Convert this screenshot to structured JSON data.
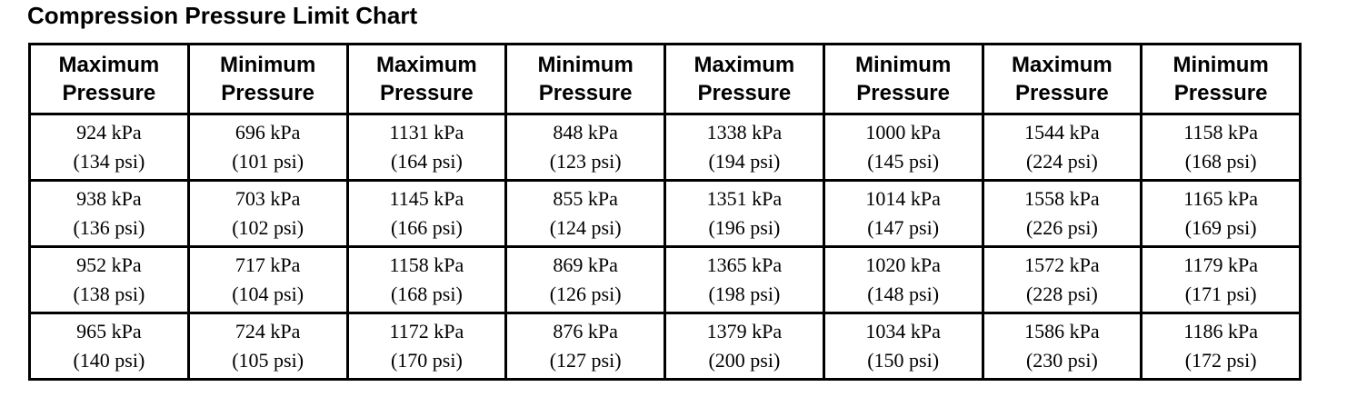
{
  "title": "Compression Pressure Limit Chart",
  "table": {
    "header": [
      {
        "line1": "Maximum",
        "line2": "Pressure"
      },
      {
        "line1": "Minimum",
        "line2": "Pressure"
      },
      {
        "line1": "Maximum",
        "line2": "Pressure"
      },
      {
        "line1": "Minimum",
        "line2": "Pressure"
      },
      {
        "line1": "Maximum",
        "line2": "Pressure"
      },
      {
        "line1": "Minimum",
        "line2": "Pressure"
      },
      {
        "line1": "Maximum",
        "line2": "Pressure"
      },
      {
        "line1": "Minimum",
        "line2": "Pressure"
      }
    ],
    "rows": [
      [
        {
          "kpa": "924 kPa",
          "psi": "(134 psi)"
        },
        {
          "kpa": "696 kPa",
          "psi": "(101 psi)"
        },
        {
          "kpa": "1131 kPa",
          "psi": "(164 psi)"
        },
        {
          "kpa": "848 kPa",
          "psi": "(123 psi)"
        },
        {
          "kpa": "1338 kPa",
          "psi": "(194 psi)"
        },
        {
          "kpa": "1000 kPa",
          "psi": "(145 psi)"
        },
        {
          "kpa": "1544 kPa",
          "psi": "(224 psi)"
        },
        {
          "kpa": "1158 kPa",
          "psi": "(168 psi)"
        }
      ],
      [
        {
          "kpa": "938 kPa",
          "psi": "(136 psi)"
        },
        {
          "kpa": "703 kPa",
          "psi": "(102 psi)"
        },
        {
          "kpa": "1145 kPa",
          "psi": "(166 psi)"
        },
        {
          "kpa": "855 kPa",
          "psi": "(124 psi)"
        },
        {
          "kpa": "1351 kPa",
          "psi": "(196 psi)"
        },
        {
          "kpa": "1014 kPa",
          "psi": "(147 psi)"
        },
        {
          "kpa": "1558 kPa",
          "psi": "(226 psi)"
        },
        {
          "kpa": "1165 kPa",
          "psi": "(169 psi)"
        }
      ],
      [
        {
          "kpa": "952 kPa",
          "psi": "(138 psi)"
        },
        {
          "kpa": "717 kPa",
          "psi": "(104 psi)"
        },
        {
          "kpa": "1158 kPa",
          "psi": "(168 psi)"
        },
        {
          "kpa": "869 kPa",
          "psi": "(126 psi)"
        },
        {
          "kpa": "1365 kPa",
          "psi": "(198 psi)"
        },
        {
          "kpa": "1020 kPa",
          "psi": "(148 psi)"
        },
        {
          "kpa": "1572 kPa",
          "psi": "(228 psi)"
        },
        {
          "kpa": "1179 kPa",
          "psi": "(171 psi)"
        }
      ],
      [
        {
          "kpa": "965 kPa",
          "psi": "(140 psi)"
        },
        {
          "kpa": "724 kPa",
          "psi": "(105 psi)"
        },
        {
          "kpa": "1172 kPa",
          "psi": "(170 psi)"
        },
        {
          "kpa": "876 kPa",
          "psi": "(127 psi)"
        },
        {
          "kpa": "1379 kPa",
          "psi": "(200 psi)"
        },
        {
          "kpa": "1034 kPa",
          "psi": "(150 psi)"
        },
        {
          "kpa": "1586 kPa",
          "psi": "(230 psi)"
        },
        {
          "kpa": "1186 kPa",
          "psi": "(172 psi)"
        }
      ]
    ]
  }
}
